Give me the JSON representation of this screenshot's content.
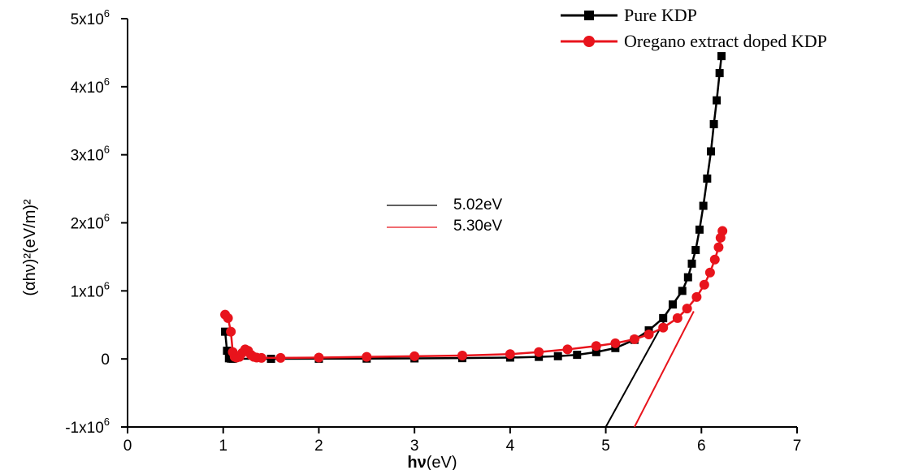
{
  "chart_data": {
    "type": "scatter",
    "xlabel_main": "hν",
    "xlabel_unit": "(eV)",
    "ylabel": "(αhν)²(eV/m)²",
    "xlim": [
      0,
      7
    ],
    "ylim": [
      -1000000,
      5000000
    ],
    "x_ticks": [
      "0",
      "1",
      "2",
      "3",
      "4",
      "5",
      "6",
      "7"
    ],
    "y_ticks": [
      {
        "value": -1000000,
        "label": "-1x10",
        "exp": "6"
      },
      {
        "value": 0,
        "label": "0",
        "exp": ""
      },
      {
        "value": 1000000,
        "label": "1x10",
        "exp": "6"
      },
      {
        "value": 2000000,
        "label": "2x10",
        "exp": "6"
      },
      {
        "value": 3000000,
        "label": "3x10",
        "exp": "6"
      },
      {
        "value": 4000000,
        "label": "4x10",
        "exp": "6"
      },
      {
        "value": 5000000,
        "label": "5x10",
        "exp": "6"
      }
    ],
    "series": [
      {
        "name": "Pure KDP",
        "color": "#000000",
        "marker": "square",
        "x": [
          1.02,
          1.04,
          1.06,
          1.08,
          1.1,
          1.5,
          2.0,
          2.5,
          3.0,
          3.5,
          4.0,
          4.3,
          4.5,
          4.7,
          4.9,
          5.1,
          5.3,
          5.45,
          5.6,
          5.7,
          5.8,
          5.86,
          5.9,
          5.94,
          5.98,
          6.02,
          6.06,
          6.1,
          6.13,
          6.16,
          6.19,
          6.21
        ],
        "y": [
          400000,
          120000,
          10000,
          5000,
          3000,
          2000,
          3000,
          5000,
          8000,
          12000,
          20000,
          30000,
          40000,
          60000,
          100000,
          160000,
          280000,
          420000,
          600000,
          800000,
          1000000,
          1200000,
          1400000,
          1600000,
          1900000,
          2250000,
          2650000,
          3050000,
          3450000,
          3800000,
          4200000,
          4450000
        ]
      },
      {
        "name": "Oregano extract doped KDP",
        "color": "#e8141c",
        "marker": "circle",
        "x": [
          1.02,
          1.05,
          1.08,
          1.1,
          1.12,
          1.14,
          1.17,
          1.2,
          1.23,
          1.26,
          1.29,
          1.32,
          1.35,
          1.4,
          1.6,
          2.0,
          2.5,
          3.0,
          3.5,
          4.0,
          4.3,
          4.6,
          4.9,
          5.1,
          5.3,
          5.45,
          5.6,
          5.75,
          5.85,
          5.95,
          6.03,
          6.09,
          6.14,
          6.18,
          6.2,
          6.22
        ],
        "y": [
          650000,
          600000,
          400000,
          100000,
          30000,
          20000,
          30000,
          90000,
          140000,
          120000,
          60000,
          30000,
          20000,
          15000,
          15000,
          20000,
          30000,
          40000,
          50000,
          70000,
          100000,
          140000,
          190000,
          230000,
          290000,
          360000,
          460000,
          600000,
          740000,
          910000,
          1090000,
          1270000,
          1460000,
          1640000,
          1780000,
          1880000
        ]
      }
    ],
    "fit_lines": [
      {
        "label": "5.02eV",
        "color": "#000000",
        "x": [
          5.0,
          5.62
        ],
        "y": [
          -1000000,
          580000
        ]
      },
      {
        "label": "5.30eV",
        "color": "#e8141c",
        "x": [
          5.3,
          5.92
        ],
        "y": [
          -1000000,
          700000
        ]
      }
    ],
    "grid": false,
    "legend_position": "top-right"
  }
}
